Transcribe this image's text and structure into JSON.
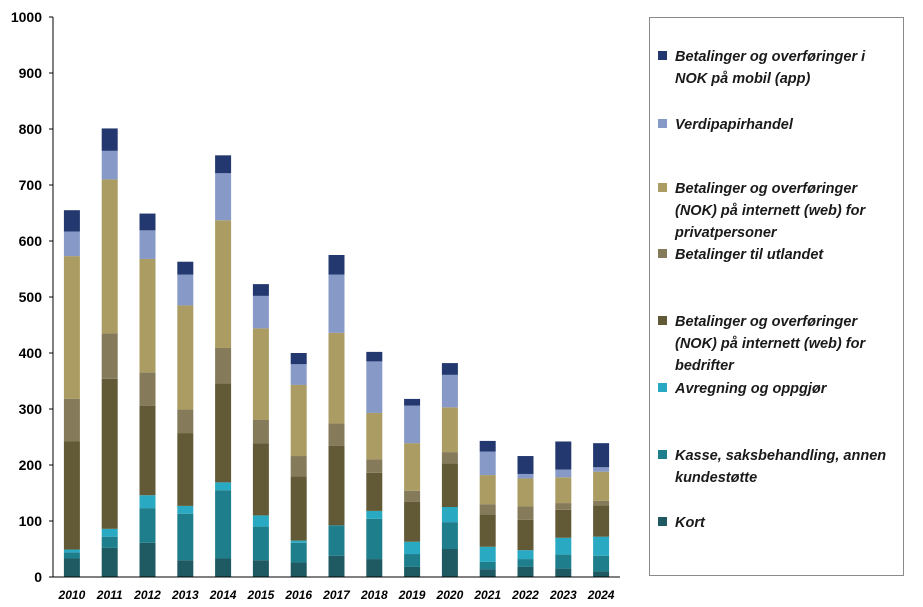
{
  "chart_data": {
    "type": "bar",
    "stacked": true,
    "title": "",
    "xlabel": "",
    "ylabel": "",
    "ylim": [
      0,
      1000
    ],
    "yticks": [
      0,
      100,
      200,
      300,
      400,
      500,
      600,
      700,
      800,
      900,
      1000
    ],
    "categories": [
      "2010",
      "2011",
      "2012",
      "2013",
      "2014",
      "2015",
      "2016",
      "2017",
      "2018",
      "2019",
      "2020",
      "2021",
      "2022",
      "2023",
      "2024"
    ],
    "legend_position": "right",
    "series": [
      {
        "name": "Kort",
        "color": "#1f5a63",
        "values": [
          33,
          52,
          61,
          30,
          33,
          30,
          26,
          38,
          32,
          18,
          50,
          14,
          18,
          15,
          10
        ]
      },
      {
        "name": "Kasse, saksbehandling, annen kundestøtte",
        "color": "#1f7e8c",
        "values": [
          11,
          20,
          62,
          83,
          122,
          60,
          35,
          53,
          72,
          23,
          48,
          13,
          14,
          25,
          28
        ]
      },
      {
        "name": "Avregning og oppgjør",
        "color": "#2aa9c3",
        "values": [
          5,
          14,
          23,
          14,
          14,
          20,
          4,
          1,
          14,
          22,
          27,
          27,
          16,
          30,
          34
        ]
      },
      {
        "name": "Betalinger og overføringer (NOK) på internett (web) for bedrifter",
        "color": "#625a36",
        "values": [
          193,
          268,
          160,
          130,
          177,
          129,
          115,
          142,
          68,
          71,
          78,
          58,
          54,
          50,
          56
        ]
      },
      {
        "name": "Betalinger til utlandet",
        "color": "#857a5a",
        "values": [
          76,
          81,
          59,
          42,
          63,
          42,
          36,
          40,
          24,
          20,
          20,
          18,
          24,
          12,
          8
        ]
      },
      {
        "name": "Betalinger og overføringer (NOK) på internett (web) for privatpersoner",
        "color": "#aa9c62",
        "values": [
          255,
          275,
          203,
          186,
          228,
          163,
          127,
          162,
          83,
          85,
          80,
          52,
          50,
          46,
          52
        ]
      },
      {
        "name": "Verdipapirhandel",
        "color": "#8799c6",
        "values": [
          44,
          51,
          51,
          55,
          84,
          58,
          37,
          104,
          92,
          67,
          58,
          42,
          8,
          14,
          8
        ]
      },
      {
        "name": "Betalinger og overføringer i NOK på mobil (app)",
        "color": "#23386e",
        "values": [
          38,
          40,
          30,
          23,
          32,
          21,
          20,
          35,
          17,
          12,
          21,
          19,
          32,
          50,
          43
        ]
      }
    ]
  }
}
